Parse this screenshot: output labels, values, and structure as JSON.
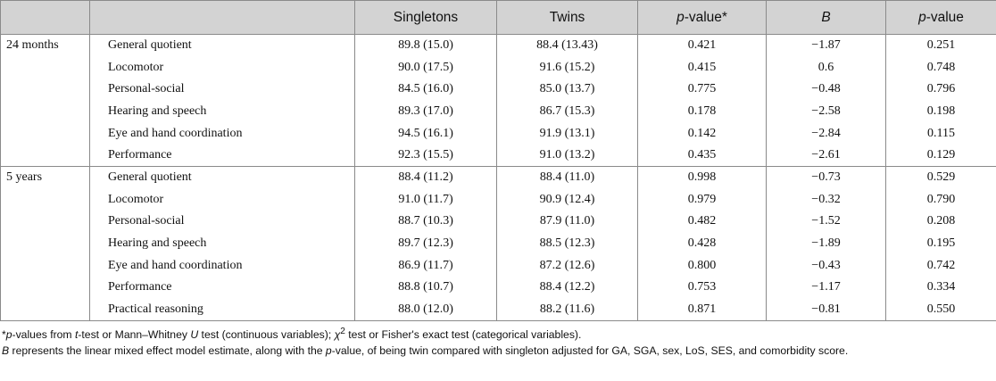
{
  "headers": [
    "",
    "",
    "Singletons",
    "Twins",
    "p-value*",
    "B",
    "p-value"
  ],
  "header_parts": {
    "pval_star": {
      "p": "p",
      "rest": "-value*"
    },
    "b": "B",
    "pval": {
      "p": "p",
      "rest": "-value"
    }
  },
  "groups": [
    {
      "label": "24 months",
      "rows": [
        [
          "General quotient",
          "89.8 (15.0)",
          "88.4 (13.43)",
          "0.421",
          "−1.87",
          "0.251"
        ],
        [
          "Locomotor",
          "90.0 (17.5)",
          "91.6 (15.2)",
          "0.415",
          "0.6",
          "0.748"
        ],
        [
          "Personal-social",
          "84.5 (16.0)",
          "85.0 (13.7)",
          "0.775",
          "−0.48",
          "0.796"
        ],
        [
          "Hearing and speech",
          "89.3 (17.0)",
          "86.7 (15.3)",
          "0.178",
          "−2.58",
          "0.198"
        ],
        [
          "Eye and hand coordination",
          "94.5 (16.1)",
          "91.9 (13.1)",
          "0.142",
          "−2.84",
          "0.115"
        ],
        [
          "Performance",
          "92.3 (15.5)",
          "91.0 (13.2)",
          "0.435",
          "−2.61",
          "0.129"
        ]
      ]
    },
    {
      "label": "5 years",
      "rows": [
        [
          "General quotient",
          "88.4 (11.2)",
          "88.4 (11.0)",
          "0.998",
          "−0.73",
          "0.529"
        ],
        [
          "Locomotor",
          "91.0 (11.7)",
          "90.9 (12.4)",
          "0.979",
          "−0.32",
          "0.790"
        ],
        [
          "Personal-social",
          "88.7 (10.3)",
          "87.9 (11.0)",
          "0.482",
          "−1.52",
          "0.208"
        ],
        [
          "Hearing and speech",
          "89.7 (12.3)",
          "88.5 (12.3)",
          "0.428",
          "−1.89",
          "0.195"
        ],
        [
          "Eye and hand coordination",
          "86.9 (11.7)",
          "87.2 (12.6)",
          "0.800",
          "−0.43",
          "0.742"
        ],
        [
          "Performance",
          "88.8 (10.7)",
          "88.4 (12.2)",
          "0.753",
          "−1.17",
          "0.334"
        ],
        [
          "Practical reasoning",
          "88.0 (12.0)",
          "88.2 (11.6)",
          "0.871",
          "−0.81",
          "0.550"
        ]
      ]
    }
  ],
  "footnotes": {
    "note1": {
      "a": "*",
      "b": "p",
      "c": "-values from ",
      "d": "t",
      "e": "-test or Mann–Whitney ",
      "f": "U",
      "g": " test (continuous variables); ",
      "h": "χ",
      "i": "2",
      "j": " test or Fisher's exact test (categorical variables)."
    },
    "note2": {
      "a": "B",
      "b": " represents the linear mixed effect model estimate, along with the ",
      "c": "p",
      "d": "-value, of being twin compared with singleton adjusted for GA, SGA, sex, LoS, SES, and comorbidity score."
    }
  }
}
